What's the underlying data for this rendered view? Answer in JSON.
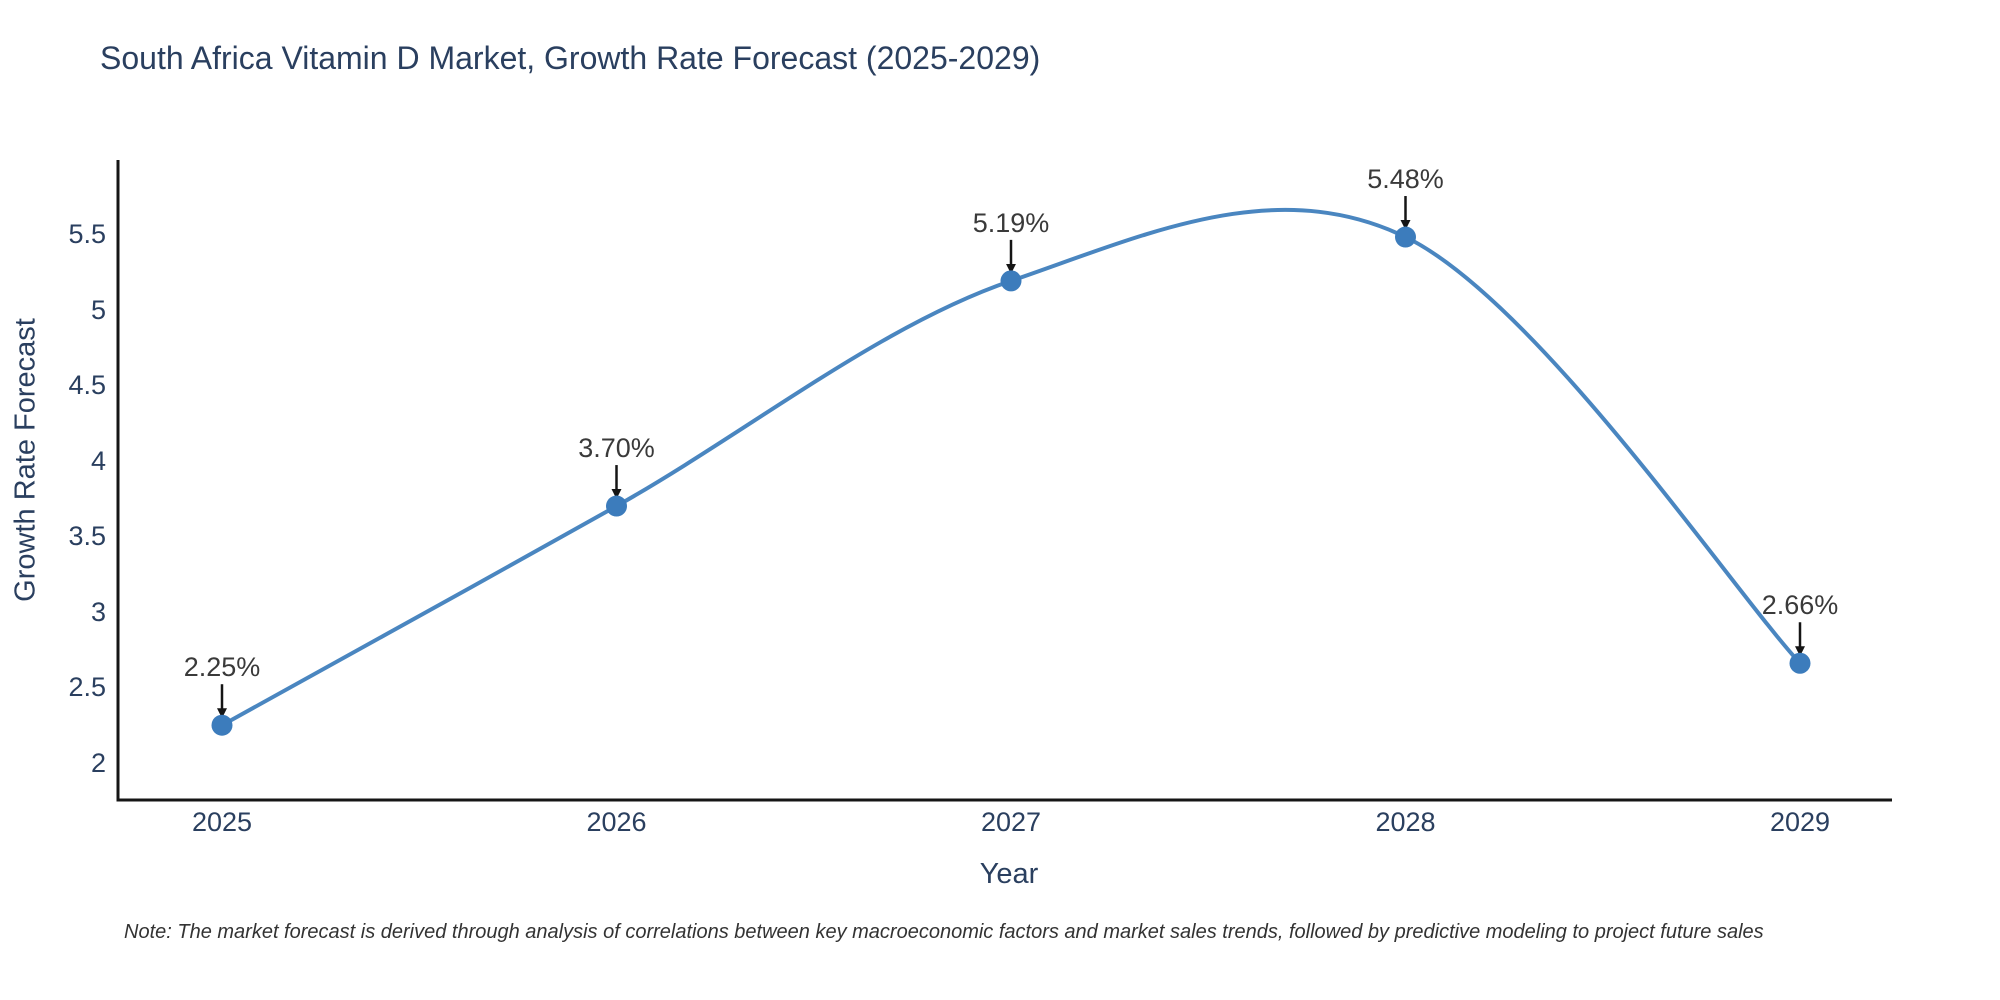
{
  "title": "South Africa Vitamin D Market, Growth Rate Forecast (2025-2029)",
  "note": "Note: The market forecast is derived through analysis of correlations between key macroeconomic factors and market sales trends, followed by predictive modeling to project future sales",
  "chart_data": {
    "type": "line",
    "line_shape": "spline",
    "title": "South Africa Vitamin D Market, Growth Rate Forecast (2025-2029)",
    "xlabel": "Year",
    "ylabel": "Growth Rate Forecast",
    "x": [
      2025,
      2026,
      2027,
      2028,
      2029
    ],
    "values": [
      2.25,
      3.7,
      5.19,
      5.48,
      2.66
    ],
    "point_labels": [
      "2.25%",
      "3.70%",
      "5.19%",
      "5.48%",
      "2.66%"
    ],
    "yticks": [
      2,
      2.5,
      3,
      3.5,
      4,
      4.5,
      5,
      5.5
    ],
    "ylim": [
      1.75,
      6.0
    ],
    "xlim": [
      2024.74,
      2029.23
    ],
    "grid": false,
    "legend": "none",
    "annotations_have_arrows": true,
    "colors": {
      "line": "#4a86c0",
      "marker": "#3c7cbc",
      "arrow": "#151515",
      "axis": "#151515",
      "heading_text": "#2a3f5f",
      "tick_text": "#2a3f5f",
      "annotation_text": "#3a3a3a",
      "note_text": "#333333",
      "background": "#ffffff"
    }
  }
}
